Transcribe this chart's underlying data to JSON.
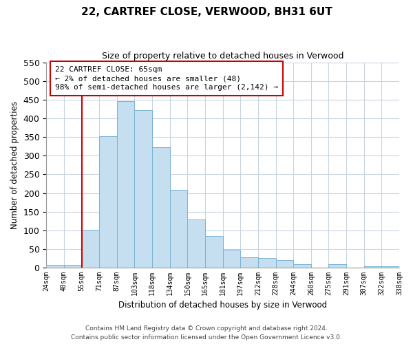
{
  "title": "22, CARTREF CLOSE, VERWOOD, BH31 6UT",
  "subtitle": "Size of property relative to detached houses in Verwood",
  "xlabel": "Distribution of detached houses by size in Verwood",
  "ylabel": "Number of detached properties",
  "bin_labels": [
    "24sqm",
    "40sqm",
    "55sqm",
    "71sqm",
    "87sqm",
    "103sqm",
    "118sqm",
    "134sqm",
    "150sqm",
    "165sqm",
    "181sqm",
    "197sqm",
    "212sqm",
    "228sqm",
    "244sqm",
    "260sqm",
    "275sqm",
    "291sqm",
    "307sqm",
    "322sqm",
    "338sqm"
  ],
  "bar_values": [
    7,
    8,
    101,
    353,
    446,
    422,
    323,
    209,
    129,
    85,
    48,
    29,
    26,
    21,
    10,
    0,
    10,
    0,
    5,
    5
  ],
  "bar_color": "#c6dff0",
  "bar_edge_color": "#7ab3d4",
  "vline_x_index": 2,
  "vline_color": "#cc0000",
  "annotation_text": "22 CARTREF CLOSE: 65sqm\n← 2% of detached houses are smaller (48)\n98% of semi-detached houses are larger (2,142) →",
  "annotation_box_color": "#ffffff",
  "annotation_box_edge": "#cc0000",
  "ylim": [
    0,
    550
  ],
  "yticks": [
    0,
    50,
    100,
    150,
    200,
    250,
    300,
    350,
    400,
    450,
    500,
    550
  ],
  "footer_line1": "Contains HM Land Registry data © Crown copyright and database right 2024.",
  "footer_line2": "Contains public sector information licensed under the Open Government Licence v3.0.",
  "bg_color": "#ffffff",
  "grid_color": "#c8d4e0"
}
